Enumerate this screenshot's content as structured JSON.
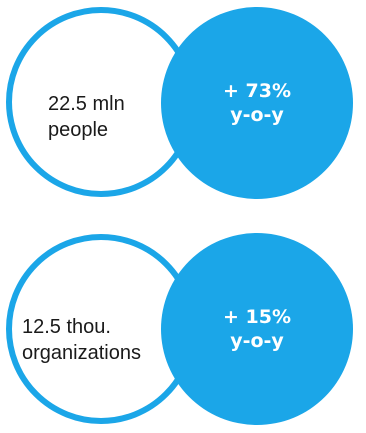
{
  "colors": {
    "accent": "#1ba6e8",
    "text": "#1a1a1a"
  },
  "stats": [
    {
      "value_line1": "22.5 mln",
      "value_line2": "people",
      "change_line1": "+ 73%",
      "change_line2": "y-o-y"
    },
    {
      "value_line1": "12.5 thou.",
      "value_line2": "organizations",
      "change_line1": "+ 15%",
      "change_line2": "y-o-y"
    }
  ]
}
